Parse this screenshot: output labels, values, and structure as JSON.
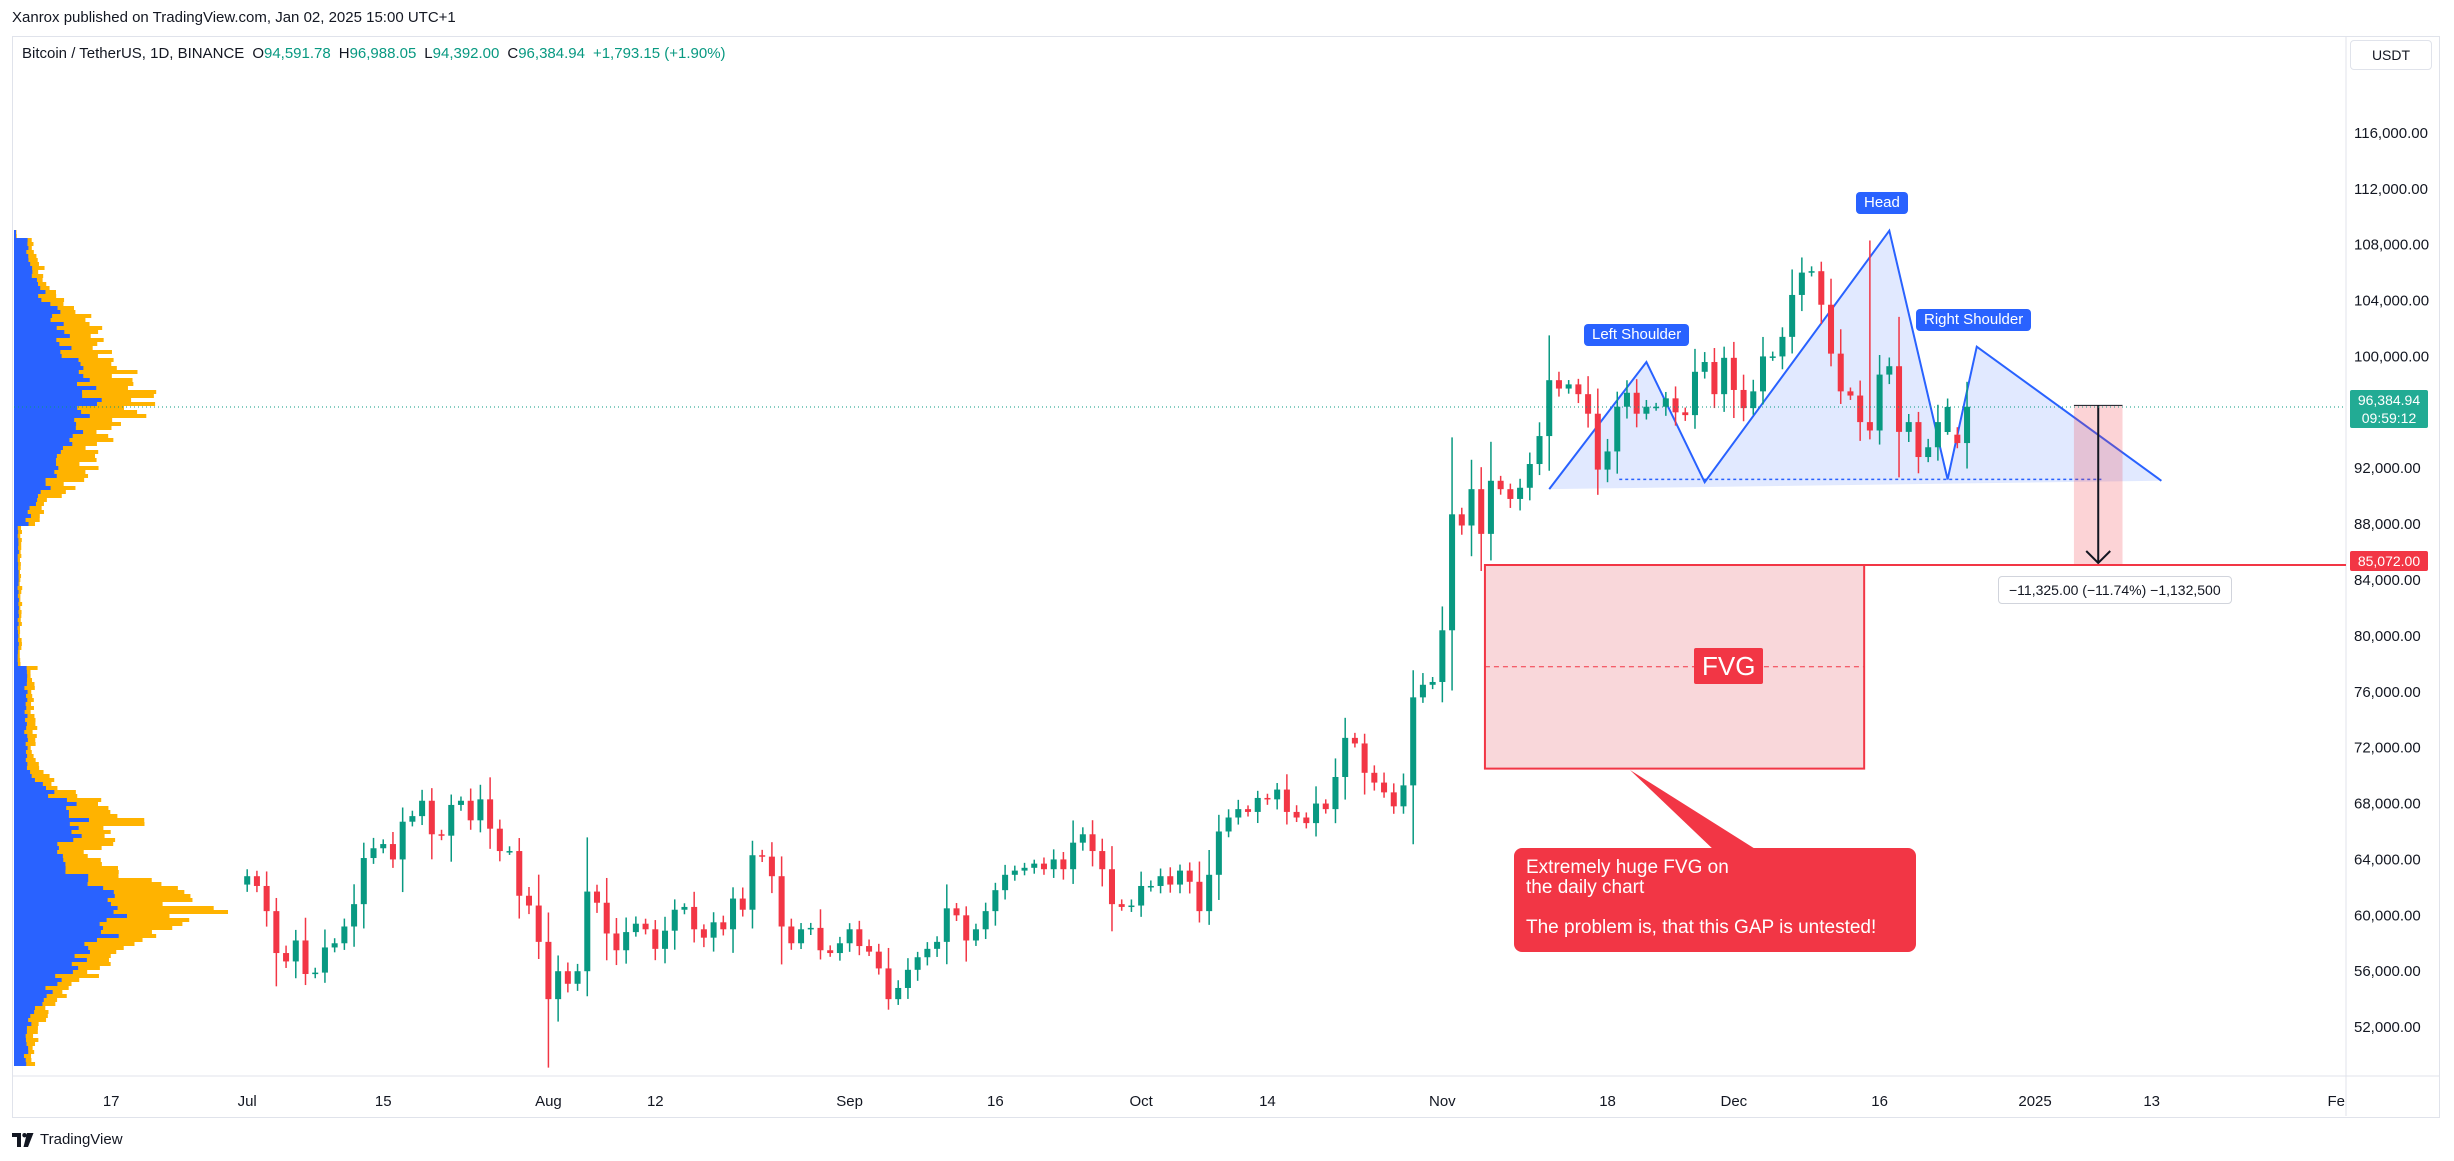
{
  "header": {
    "publisher": "Xanrox published on TradingView.com, Jan 02, 2025 15:00 UTC+1"
  },
  "legend": {
    "symbol": "Bitcoin / TetherUS, 1D, BINANCE",
    "open_label": "O",
    "open": "94,591.78",
    "high_label": "H",
    "high": "96,988.05",
    "low_label": "L",
    "low": "94,392.00",
    "close_label": "C",
    "close": "96,384.94",
    "change": "+1,793.15 (+1.90%)"
  },
  "currency": "USDT",
  "last_price": {
    "price": "96,384.94",
    "countdown": "09:59:12"
  },
  "level_line": {
    "label": "85,072.00",
    "value": 85072
  },
  "measure": {
    "label": "−11,325.00 (−11.74%) −1,132,500"
  },
  "fvg": {
    "label": "FVG",
    "top": 85072,
    "bottom": 70500
  },
  "annotations": {
    "left_shoulder": "Left Shoulder",
    "head": "Head",
    "right_shoulder": "Right Shoulder",
    "note_line1": "Extremely huge FVG on",
    "note_line2": "the daily chart",
    "note_line3": "The problem is, that this GAP is untested!"
  },
  "footer": {
    "brand": "TradingView"
  },
  "colors": {
    "up": "#089981",
    "down": "#f23645",
    "pattern": "#2962ff",
    "volume_profile_up": "#2962ff",
    "volume_profile_down": "#ffb300",
    "fvg_fill": "#f7c9cd"
  },
  "chart_data": {
    "type": "candlestick",
    "symbol": "BTCUSDT",
    "interval": "1D",
    "y_ticks": [
      52000,
      56000,
      60000,
      64000,
      68000,
      72000,
      76000,
      80000,
      84000,
      88000,
      92000,
      96000,
      100000,
      104000,
      108000,
      112000,
      116000
    ],
    "y_tick_labels": [
      "52,000.00",
      "56,000.00",
      "60,000.00",
      "64,000.00",
      "68,000.00",
      "72,000.00",
      "76,000.00",
      "80,000.00",
      "84,000.00",
      "88,000.00",
      "92,000.00",
      "96,000.00",
      "100,000.00",
      "104,000.00",
      "108,000.00",
      "112,000.00",
      "116,000.00"
    ],
    "ylim": [
      48500,
      120500
    ],
    "x_ticks": [
      {
        "label": "17",
        "date": "2024-06-17"
      },
      {
        "label": "Jul",
        "date": "2024-07-01"
      },
      {
        "label": "15",
        "date": "2024-07-15"
      },
      {
        "label": "Aug",
        "date": "2024-08-01"
      },
      {
        "label": "12",
        "date": "2024-08-12"
      },
      {
        "label": "Sep",
        "date": "2024-09-01"
      },
      {
        "label": "16",
        "date": "2024-09-16"
      },
      {
        "label": "Oct",
        "date": "2024-10-01"
      },
      {
        "label": "14",
        "date": "2024-10-14"
      },
      {
        "label": "Nov",
        "date": "2024-11-01"
      },
      {
        "label": "18",
        "date": "2024-11-18"
      },
      {
        "label": "Dec",
        "date": "2024-12-01"
      },
      {
        "label": "16",
        "date": "2024-12-16"
      },
      {
        "label": "2025",
        "date": "2025-01-01"
      },
      {
        "label": "13",
        "date": "2025-01-13"
      },
      {
        "label": "Fe",
        "date": "2025-02-01"
      }
    ],
    "xlim": [
      "2024-06-07",
      "2025-02-02"
    ],
    "anchor_date": "2024-07-01",
    "closes_from_anchor": [
      62800,
      62100,
      60300,
      57300,
      56700,
      58200,
      55800,
      55900,
      57700,
      58000,
      59200,
      60800,
      64100,
      64800,
      65100,
      64000,
      66700,
      67100,
      68200,
      65800,
      65700,
      67900,
      68200,
      66800,
      68300,
      66200,
      64600,
      64600,
      61400,
      60700,
      58100,
      54000,
      56000,
      55100,
      56000,
      61700,
      60900,
      58700,
      57500,
      58800,
      59400,
      59000,
      57600,
      58900,
      60400,
      60600,
      59000,
      58400,
      59500,
      59000,
      61200,
      60400,
      64300,
      64200,
      62800,
      59200,
      58000,
      59000,
      59100,
      57500,
      57300,
      58000,
      59000,
      57800,
      57400,
      56200,
      54000,
      54800,
      56100,
      57000,
      57600,
      58100,
      60500,
      60000,
      58200,
      59000,
      60300,
      61800,
      62900,
      63200,
      63400,
      63700,
      63300,
      64000,
      63300,
      65200,
      65800,
      64600,
      63300,
      60800,
      60600,
      60700,
      62100,
      62100,
      62800,
      62200,
      63200,
      62400,
      60300,
      62900,
      66000,
      67000,
      67600,
      67400,
      68400,
      68300,
      69000,
      67400,
      67000,
      66600,
      68000,
      67600,
      69900,
      72700,
      72300,
      70200,
      69500,
      68800,
      67800,
      69300,
      75600,
      76500,
      76700,
      80400,
      88700,
      87900,
      90500,
      87300,
      91100,
      90500,
      89800,
      90600,
      92300,
      94300,
      98300,
      97700,
      98000,
      97300,
      95900,
      91900,
      93200,
      96400,
      97400,
      95900,
      96400,
      96400,
      97000,
      96000,
      95800,
      98900,
      99600,
      97300,
      99900,
      97600,
      96300,
      97500,
      100000,
      100000,
      101400,
      104400,
      106000,
      106100,
      103700,
      100200,
      97500,
      97200,
      95300,
      94700,
      98700,
      99300,
      94600,
      95300,
      92800,
      93500,
      95300,
      94400,
      93800,
      96400
    ]
  }
}
